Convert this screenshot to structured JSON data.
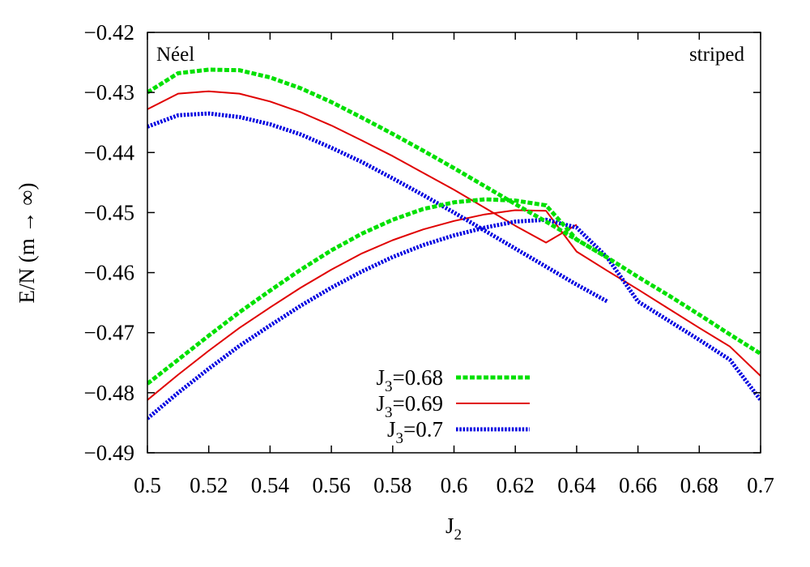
{
  "chart_data": {
    "type": "line",
    "xlabel": "J",
    "xlabel_sub": "2",
    "ylabel": "E/N (m → ∞)",
    "xlim": [
      0.5,
      0.7
    ],
    "ylim": [
      -0.49,
      -0.42
    ],
    "xticks": [
      "0.5",
      "0.52",
      "0.54",
      "0.56",
      "0.58",
      "0.6",
      "0.62",
      "0.64",
      "0.66",
      "0.68",
      "0.7"
    ],
    "yticks": [
      "−0.42",
      "−0.43",
      "−0.44",
      "−0.45",
      "−0.46",
      "−0.47",
      "−0.48",
      "−0.49"
    ],
    "grid": false,
    "legend_placement": "bottom-center",
    "annotations": [
      {
        "text": "Néel",
        "position": "top-left"
      },
      {
        "text": "striped",
        "position": "top-right"
      }
    ],
    "series": [
      {
        "name_main": "J",
        "name_sub": "3",
        "name_value": "=0.68",
        "color": "#00e000",
        "style": "dashed",
        "neel_branch": {
          "x": [
            0.5,
            0.51,
            0.52,
            0.53,
            0.54,
            0.55,
            0.56,
            0.57,
            0.58,
            0.59,
            0.6,
            0.61,
            0.62,
            0.63,
            0.64,
            0.65
          ],
          "y": [
            -0.43,
            -0.4268,
            -0.4262,
            -0.4263,
            -0.4275,
            -0.4293,
            -0.4316,
            -0.4342,
            -0.4369,
            -0.4397,
            -0.4426,
            -0.4456,
            -0.4486,
            -0.4515,
            -0.4545,
            -0.4575
          ]
        },
        "striped_branch": {
          "x": [
            0.5,
            0.51,
            0.52,
            0.53,
            0.54,
            0.55,
            0.56,
            0.57,
            0.58,
            0.59,
            0.6,
            0.61,
            0.62,
            0.63,
            0.64,
            0.65,
            0.66,
            0.67,
            0.68,
            0.69,
            0.7
          ],
          "y": [
            -0.4785,
            -0.4745,
            -0.4705,
            -0.4666,
            -0.463,
            -0.4595,
            -0.4563,
            -0.4535,
            -0.4512,
            -0.4494,
            -0.4483,
            -0.4478,
            -0.448,
            -0.4488,
            -0.4545,
            -0.4575,
            -0.4607,
            -0.4638,
            -0.467,
            -0.4703,
            -0.4735
          ]
        }
      },
      {
        "name_main": "J",
        "name_sub": "3",
        "name_value": "=0.69",
        "color": "#e00000",
        "style": "solid",
        "neel_branch": {
          "x": [
            0.5,
            0.51,
            0.52,
            0.53,
            0.54,
            0.55,
            0.56,
            0.57,
            0.58,
            0.59,
            0.6,
            0.61,
            0.62,
            0.63,
            0.64
          ],
          "y": [
            -0.4328,
            -0.4302,
            -0.4298,
            -0.4302,
            -0.4315,
            -0.4333,
            -0.4355,
            -0.438,
            -0.4406,
            -0.4434,
            -0.4462,
            -0.4492,
            -0.4522,
            -0.455,
            -0.452
          ]
        },
        "striped_branch": {
          "x": [
            0.5,
            0.51,
            0.52,
            0.53,
            0.54,
            0.55,
            0.56,
            0.57,
            0.58,
            0.59,
            0.6,
            0.61,
            0.62,
            0.63,
            0.64,
            0.65,
            0.66,
            0.67,
            0.68,
            0.69,
            0.7
          ],
          "y": [
            -0.4812,
            -0.477,
            -0.473,
            -0.4692,
            -0.4658,
            -0.4625,
            -0.4595,
            -0.4568,
            -0.4546,
            -0.4528,
            -0.4514,
            -0.4503,
            -0.4496,
            -0.4497,
            -0.4565,
            -0.4597,
            -0.4628,
            -0.466,
            -0.4692,
            -0.4723,
            -0.4772
          ]
        }
      },
      {
        "name_main": "J",
        "name_sub": "3",
        "name_value": "=0.7",
        "color": "#0000e0",
        "style": "dotted",
        "neel_branch": {
          "x": [
            0.5,
            0.51,
            0.52,
            0.53,
            0.54,
            0.55,
            0.56,
            0.57,
            0.58,
            0.59,
            0.6,
            0.61,
            0.62,
            0.63,
            0.64,
            0.65
          ],
          "y": [
            -0.4357,
            -0.4338,
            -0.4335,
            -0.4341,
            -0.4353,
            -0.437,
            -0.4392,
            -0.4416,
            -0.4443,
            -0.4471,
            -0.45,
            -0.453,
            -0.456,
            -0.459,
            -0.462,
            -0.4648
          ]
        },
        "striped_branch": {
          "x": [
            0.5,
            0.51,
            0.52,
            0.53,
            0.54,
            0.55,
            0.56,
            0.57,
            0.58,
            0.59,
            0.6,
            0.61,
            0.62,
            0.63,
            0.64,
            0.65,
            0.66,
            0.67,
            0.68,
            0.69,
            0.7
          ],
          "y": [
            -0.4843,
            -0.48,
            -0.476,
            -0.4722,
            -0.4688,
            -0.4655,
            -0.4625,
            -0.4598,
            -0.4574,
            -0.4554,
            -0.4538,
            -0.4525,
            -0.4515,
            -0.4512,
            -0.4525,
            -0.4575,
            -0.4648,
            -0.468,
            -0.4712,
            -0.4745,
            -0.4812
          ]
        }
      }
    ]
  }
}
